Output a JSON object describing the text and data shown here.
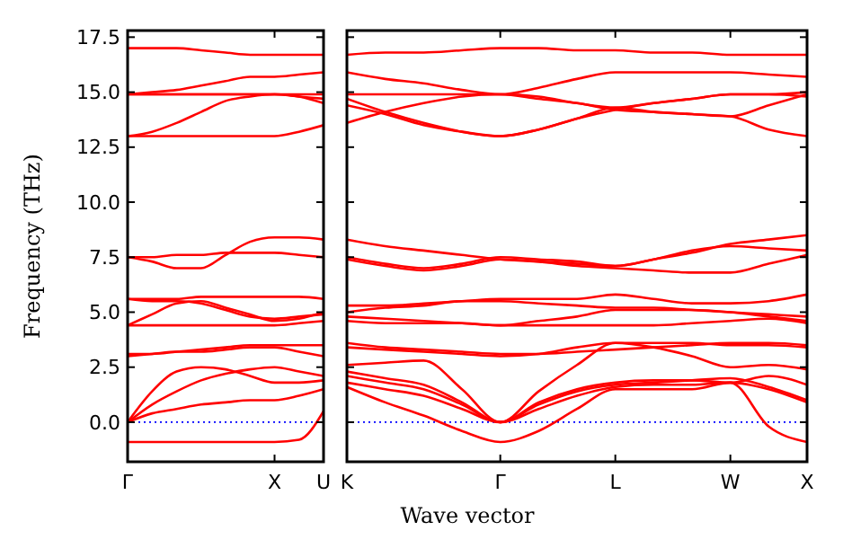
{
  "chart_data": [
    {
      "type": "line",
      "ylabel": "Frequency (THz)",
      "categories": [
        "Γ",
        null,
        null,
        null,
        null,
        null,
        "X",
        null,
        "U"
      ],
      "ylim": [
        -1.8,
        17.8
      ],
      "yticks": [
        {
          "value": 0,
          "label": "0.0"
        },
        {
          "value": 2.5,
          "label": "2.5"
        },
        {
          "value": 5,
          "label": "5.0"
        },
        {
          "value": 7.5,
          "label": "7.5"
        },
        {
          "value": 10,
          "label": "10.0"
        },
        {
          "value": 12.5,
          "label": "12.5"
        },
        {
          "value": 15,
          "label": "15.0"
        },
        {
          "value": 17.5,
          "label": "17.5"
        }
      ],
      "marker": "none",
      "line_style": "solid",
      "ref_lines": [
        {
          "axis": "y",
          "value": 0,
          "color": "#0000ff",
          "line_style": "dotted"
        }
      ],
      "series": [
        {
          "color": "#ff0000",
          "values": [
            17.0,
            17.0,
            17.0,
            16.9,
            16.8,
            16.7,
            16.7,
            16.7,
            16.7
          ]
        },
        {
          "color": "#ff0000",
          "values": [
            14.9,
            15.0,
            15.1,
            15.3,
            15.5,
            15.7,
            15.7,
            15.8,
            15.9
          ]
        },
        {
          "color": "#ff0000",
          "values": [
            14.9,
            14.9,
            14.9,
            14.9,
            14.9,
            14.9,
            14.9,
            14.9,
            14.9
          ]
        },
        {
          "color": "#ff0000",
          "values": [
            14.9,
            14.9,
            14.9,
            14.9,
            14.9,
            14.9,
            14.9,
            14.8,
            14.5
          ]
        },
        {
          "color": "#ff0000",
          "values": [
            13.0,
            13.2,
            13.6,
            14.1,
            14.6,
            14.8,
            14.9,
            14.8,
            14.7
          ]
        },
        {
          "color": "#ff0000",
          "values": [
            13.0,
            13.0,
            13.0,
            13.0,
            13.0,
            13.0,
            13.0,
            13.2,
            13.5
          ]
        },
        {
          "color": "#ff0000",
          "values": [
            7.5,
            7.3,
            7.0,
            7.0,
            7.6,
            8.2,
            8.4,
            8.4,
            8.3
          ]
        },
        {
          "color": "#ff0000",
          "values": [
            7.5,
            7.5,
            7.6,
            7.6,
            7.7,
            7.7,
            7.7,
            7.6,
            7.5
          ]
        },
        {
          "color": "#ff0000",
          "values": [
            5.6,
            5.6,
            5.6,
            5.7,
            5.7,
            5.7,
            5.7,
            5.7,
            5.6
          ]
        },
        {
          "color": "#ff0000",
          "values": [
            5.6,
            5.5,
            5.5,
            5.4,
            5.1,
            4.8,
            4.7,
            4.8,
            4.9
          ]
        },
        {
          "color": "#ff0000",
          "values": [
            4.4,
            4.9,
            5.4,
            5.5,
            5.2,
            4.9,
            4.6,
            4.7,
            5.0
          ]
        },
        {
          "color": "#ff0000",
          "values": [
            4.4,
            4.4,
            4.4,
            4.4,
            4.4,
            4.4,
            4.4,
            4.5,
            4.6
          ]
        },
        {
          "color": "#ff0000",
          "values": [
            3.1,
            3.1,
            3.2,
            3.3,
            3.4,
            3.5,
            3.5,
            3.5,
            3.5
          ]
        },
        {
          "color": "#ff0000",
          "values": [
            3.0,
            3.1,
            3.2,
            3.2,
            3.3,
            3.4,
            3.4,
            3.2,
            3.0
          ]
        },
        {
          "color": "#ff0000",
          "values": [
            0,
            1.4,
            2.3,
            2.5,
            2.4,
            2.1,
            1.8,
            1.8,
            1.9
          ]
        },
        {
          "color": "#ff0000",
          "values": [
            0,
            0.8,
            1.4,
            1.9,
            2.2,
            2.4,
            2.5,
            2.3,
            2.1
          ]
        },
        {
          "color": "#ff0000",
          "values": [
            0,
            0.4,
            0.6,
            0.8,
            0.9,
            1.0,
            1.0,
            1.2,
            1.5
          ]
        },
        {
          "color": "#ff0000",
          "values": [
            -0.9,
            -0.9,
            -0.9,
            -0.9,
            -0.9,
            -0.9,
            -0.9,
            -0.8,
            0.5
          ]
        }
      ]
    },
    {
      "type": "line",
      "xlabel": "Wave vector",
      "categories": [
        "K",
        null,
        null,
        null,
        "Γ",
        null,
        null,
        "L",
        null,
        null,
        "W",
        null,
        "X"
      ],
      "ylim": [
        -1.8,
        17.8
      ],
      "yticks": [
        {
          "value": 0,
          "label": null
        },
        {
          "value": 2.5,
          "label": null
        },
        {
          "value": 5,
          "label": null
        },
        {
          "value": 7.5,
          "label": null
        },
        {
          "value": 10,
          "label": null
        },
        {
          "value": 12.5,
          "label": null
        },
        {
          "value": 15,
          "label": null
        },
        {
          "value": 17.5,
          "label": null
        }
      ],
      "tick_labels": "x",
      "marker": "none",
      "line_style": "solid",
      "ref_lines": [
        {
          "axis": "y",
          "value": 0,
          "color": "#0000ff",
          "line_style": "dotted"
        }
      ],
      "series": [
        {
          "color": "#ff0000",
          "values": [
            16.7,
            16.8,
            16.8,
            16.9,
            17.0,
            17.0,
            16.9,
            16.9,
            16.8,
            16.8,
            16.7,
            16.7,
            16.7
          ]
        },
        {
          "color": "#ff0000",
          "values": [
            15.9,
            15.6,
            15.4,
            15.1,
            14.9,
            15.2,
            15.6,
            15.9,
            15.9,
            15.9,
            15.9,
            15.8,
            15.7
          ]
        },
        {
          "color": "#ff0000",
          "values": [
            14.9,
            14.9,
            14.9,
            14.9,
            14.9,
            14.7,
            14.5,
            14.2,
            14.1,
            14.0,
            13.9,
            14.4,
            14.9
          ]
        },
        {
          "color": "#ff0000",
          "values": [
            14.4,
            14.0,
            13.5,
            13.2,
            13.0,
            13.3,
            13.8,
            14.2,
            14.5,
            14.7,
            14.9,
            14.9,
            14.8
          ]
        },
        {
          "color": "#ff0000",
          "values": [
            14.7,
            14.1,
            13.6,
            13.2,
            13.0,
            13.3,
            13.8,
            14.3,
            14.1,
            14.0,
            13.9,
            13.3,
            13.0
          ]
        },
        {
          "color": "#ff0000",
          "values": [
            13.6,
            14.1,
            14.5,
            14.8,
            14.9,
            14.8,
            14.5,
            14.3,
            14.5,
            14.7,
            14.9,
            14.9,
            15.0
          ]
        },
        {
          "color": "#ff0000",
          "values": [
            8.3,
            8.0,
            7.8,
            7.6,
            7.4,
            7.3,
            7.2,
            7.1,
            7.4,
            7.7,
            8.1,
            8.3,
            8.5
          ]
        },
        {
          "color": "#ff0000",
          "values": [
            7.4,
            7.1,
            6.9,
            7.1,
            7.4,
            7.3,
            7.1,
            7.0,
            6.9,
            6.8,
            6.8,
            7.2,
            7.6
          ]
        },
        {
          "color": "#ff0000",
          "values": [
            7.5,
            7.2,
            7.0,
            7.2,
            7.5,
            7.4,
            7.3,
            7.1,
            7.4,
            7.8,
            8.0,
            7.9,
            7.8
          ]
        },
        {
          "color": "#ff0000",
          "values": [
            5.3,
            5.3,
            5.4,
            5.5,
            5.6,
            5.6,
            5.6,
            5.8,
            5.6,
            5.4,
            5.4,
            5.5,
            5.8
          ]
        },
        {
          "color": "#ff0000",
          "values": [
            5.0,
            5.2,
            5.3,
            5.5,
            5.5,
            5.4,
            5.3,
            5.2,
            5.2,
            5.1,
            5.0,
            4.9,
            4.8
          ]
        },
        {
          "color": "#ff0000",
          "values": [
            4.8,
            4.7,
            4.6,
            4.5,
            4.4,
            4.6,
            4.8,
            5.1,
            5.1,
            5.1,
            5.0,
            4.8,
            4.6
          ]
        },
        {
          "color": "#ff0000",
          "values": [
            4.6,
            4.5,
            4.5,
            4.5,
            4.4,
            4.4,
            4.4,
            4.4,
            4.4,
            4.5,
            4.6,
            4.7,
            4.5
          ]
        },
        {
          "color": "#ff0000",
          "values": [
            3.6,
            3.4,
            3.3,
            3.2,
            3.1,
            3.1,
            3.2,
            3.3,
            3.4,
            3.5,
            3.6,
            3.6,
            3.5
          ]
        },
        {
          "color": "#ff0000",
          "values": [
            3.4,
            3.3,
            3.2,
            3.1,
            3.0,
            3.1,
            3.4,
            3.6,
            3.6,
            3.6,
            3.5,
            3.5,
            3.4
          ]
        },
        {
          "color": "#ff0000",
          "values": [
            2.6,
            2.7,
            2.8,
            1.5,
            0,
            1.4,
            2.6,
            3.6,
            3.4,
            3.0,
            2.5,
            2.6,
            2.4
          ]
        },
        {
          "color": "#ff0000",
          "values": [
            2.3,
            2.0,
            1.7,
            0.9,
            0,
            0.9,
            1.5,
            1.8,
            1.9,
            1.9,
            1.8,
            2.1,
            1.7
          ]
        },
        {
          "color": "#ff0000",
          "values": [
            2.1,
            1.8,
            1.5,
            0.8,
            0,
            0.8,
            1.4,
            1.7,
            1.8,
            1.9,
            2.0,
            1.6,
            1.0
          ]
        },
        {
          "color": "#ff0000",
          "values": [
            1.8,
            1.5,
            1.2,
            0.6,
            0,
            0.6,
            1.2,
            1.6,
            1.7,
            1.7,
            1.8,
            1.5,
            0.9
          ]
        },
        {
          "color": "#ff0000",
          "values": [
            1.6,
            0.9,
            0.3,
            -0.4,
            -0.9,
            -0.4,
            0.6,
            1.5,
            1.5,
            1.5,
            1.8,
            -0.2,
            -0.9
          ]
        }
      ]
    }
  ]
}
